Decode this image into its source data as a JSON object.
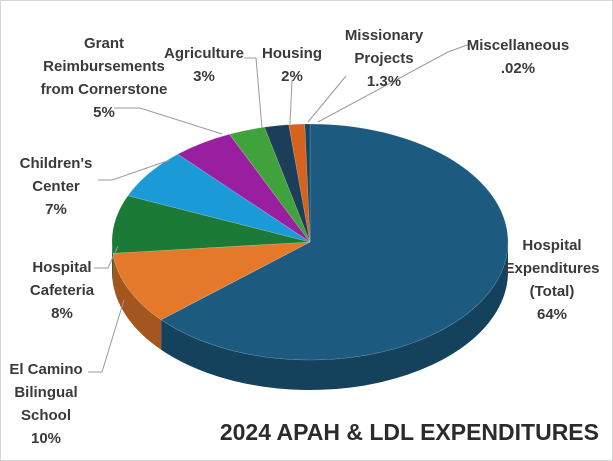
{
  "chart_data": {
    "type": "pie",
    "title": "2024 APAH & LDL EXPENDITURES",
    "slices": [
      {
        "key": "hospital",
        "lines": [
          "Hospital",
          "Expenditures",
          "(Total)",
          "64%"
        ],
        "value": 64,
        "color": "#1c5a80"
      },
      {
        "key": "el-camino",
        "lines": [
          "El Camino",
          "Bilingual",
          "School",
          "10%"
        ],
        "value": 10,
        "color": "#e4782b"
      },
      {
        "key": "cafeteria",
        "lines": [
          "Hospital",
          "Cafeteria",
          "8%"
        ],
        "value": 8,
        "color": "#1b7a36"
      },
      {
        "key": "childrens",
        "lines": [
          "Children's",
          "Center",
          "7%"
        ],
        "value": 7,
        "color": "#1a9ad6"
      },
      {
        "key": "grant",
        "lines": [
          "Grant",
          "Reimbursements",
          "from Cornerstone",
          "5%"
        ],
        "value": 5,
        "color": "#9a1fa0"
      },
      {
        "key": "agriculture",
        "lines": [
          "Agriculture",
          "3%"
        ],
        "value": 3,
        "color": "#3fa23a"
      },
      {
        "key": "housing",
        "lines": [
          "Housing",
          "2%"
        ],
        "value": 2,
        "color": "#1d3e58"
      },
      {
        "key": "missionary",
        "lines": [
          "Missionary",
          "Projects",
          "1.3%"
        ],
        "value": 1.3,
        "color": "#d7621d"
      },
      {
        "key": "misc",
        "lines": [
          "Miscellaneous",
          ".02%"
        ],
        "value": 0.02,
        "color": "#14465f"
      }
    ]
  }
}
